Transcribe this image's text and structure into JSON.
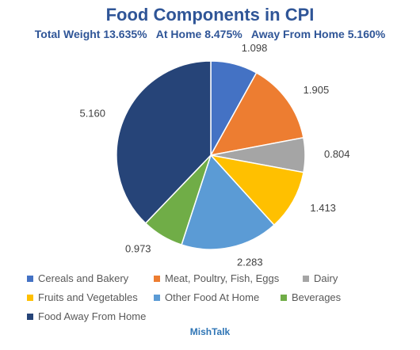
{
  "chart_data": {
    "type": "pie",
    "title": "Food Components in CPI",
    "subtitle": "Total Weight 13.635%   At Home 8.475%   Away From Home 5.160%",
    "series": [
      {
        "name": "Cereals and Bakery",
        "value": 1.098,
        "label": "1.098",
        "color": "#4472C4"
      },
      {
        "name": "Meat, Poultry, Fish, Eggs",
        "value": 1.905,
        "label": "1.905",
        "color": "#ED7D31"
      },
      {
        "name": "Dairy",
        "value": 0.804,
        "label": "0.804",
        "color": "#A5A5A5"
      },
      {
        "name": "Fruits and Vegetables",
        "value": 1.413,
        "label": "1.413",
        "color": "#FFC000"
      },
      {
        "name": "Other Food At Home",
        "value": 2.283,
        "label": "2.283",
        "color": "#5B9BD5"
      },
      {
        "name": "Beverages",
        "value": 0.973,
        "label": "0.973",
        "color": "#70AD47"
      },
      {
        "name": "Food Away From Home",
        "value": 5.16,
        "label": "5.160",
        "color": "#264478"
      }
    ],
    "start_angle_deg": 0,
    "direction": "clockwise",
    "legend_position": "bottom"
  },
  "source": "MishTalk"
}
